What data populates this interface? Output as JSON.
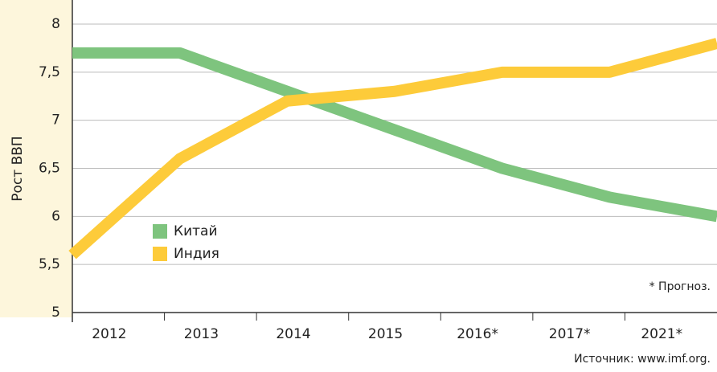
{
  "chart_data": {
    "type": "line",
    "y_label": "Рост ВВП",
    "categories": [
      "2012",
      "2013",
      "2014",
      "2015",
      "2016*",
      "2017*",
      "2021*"
    ],
    "series": [
      {
        "name": "Китай",
        "color": "#7ec47e",
        "values": [
          7.7,
          7.7,
          7.3,
          6.9,
          6.5,
          6.2,
          6.0
        ]
      },
      {
        "name": "Индия",
        "color": "#fdcb3a",
        "values": [
          5.6,
          6.6,
          7.2,
          7.3,
          7.5,
          7.5,
          7.8
        ]
      }
    ],
    "ylim": [
      5,
      8
    ],
    "yticks": [
      5,
      {
        "value": 5.5,
        "label": "5,5"
      },
      6,
      {
        "value": 6.5,
        "label": "6,5"
      },
      7,
      {
        "value": 7.5,
        "label": "7,5"
      },
      8
    ],
    "grid": true,
    "legend": "center-left",
    "annotation": "* Прогноз.",
    "source": "Источник: www.imf.org."
  }
}
